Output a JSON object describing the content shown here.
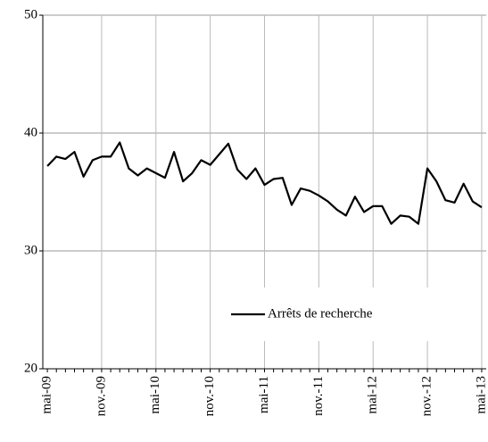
{
  "chart_data": {
    "type": "line",
    "categories": [
      "mai-09",
      null,
      null,
      null,
      null,
      null,
      "nov.-09",
      null,
      null,
      null,
      null,
      null,
      "mai-10",
      null,
      null,
      null,
      null,
      null,
      "nov.-10",
      null,
      null,
      null,
      null,
      null,
      "mai-11",
      null,
      null,
      null,
      null,
      null,
      "nov.-11",
      null,
      null,
      null,
      null,
      null,
      "mai-12",
      null,
      null,
      null,
      null,
      null,
      "nov.-12",
      null,
      null,
      null,
      null,
      null,
      "mai-13"
    ],
    "series": [
      {
        "name": "Arrêts de recherche",
        "color": "#000000",
        "values": [
          37.2,
          38.0,
          37.8,
          38.4,
          36.3,
          37.7,
          38.0,
          38.0,
          39.2,
          37.0,
          36.4,
          37.0,
          36.6,
          36.2,
          38.4,
          35.9,
          36.6,
          37.7,
          37.3,
          38.2,
          39.1,
          36.9,
          36.1,
          37.0,
          35.6,
          36.1,
          36.2,
          33.9,
          35.3,
          35.1,
          34.7,
          34.2,
          33.5,
          33.0,
          34.6,
          33.3,
          33.8,
          33.8,
          32.3,
          33.0,
          32.9,
          32.3,
          37.0,
          35.9,
          34.3,
          34.1,
          35.7,
          34.2,
          33.7
        ]
      }
    ],
    "ylim": [
      20,
      50
    ],
    "yticks": [
      20,
      30,
      40,
      50
    ],
    "grid": true
  }
}
